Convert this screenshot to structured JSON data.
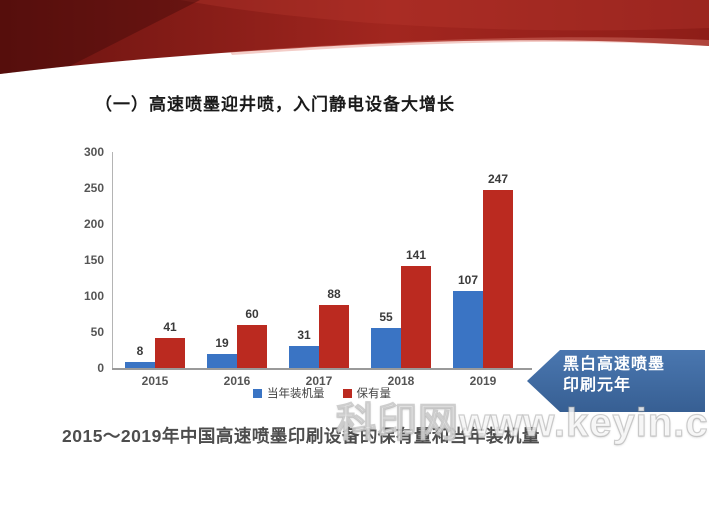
{
  "slide": {
    "title": "（一）高速喷墨迎井喷，入门静电设备大增长",
    "caption": "2015～2019年中国高速喷墨印刷设备的保有量和当年装机量",
    "callout": {
      "line1": "黑白高速喷墨",
      "line2": "印刷元年"
    },
    "watermark": "科印网www.keyin.cn"
  },
  "colors": {
    "series_blue": "#3a74c4",
    "series_red": "#bb2a20",
    "callout_blue": "#3e6ca6",
    "ribbon_dark_red": "#6a1310",
    "ribbon_red": "#9c221c"
  },
  "chart_data": {
    "type": "bar",
    "title": "",
    "xlabel": "",
    "ylabel": "",
    "categories": [
      "2015",
      "2016",
      "2017",
      "2018",
      "2019"
    ],
    "series": [
      {
        "name": "当年装机量",
        "color": "#3a74c4",
        "values": [
          8,
          19,
          31,
          55,
          107
        ]
      },
      {
        "name": "保有量",
        "color": "#bb2a20",
        "values": [
          41,
          60,
          88,
          141,
          247
        ]
      }
    ],
    "ylim": [
      0,
      300
    ],
    "yticks": [
      0,
      50,
      100,
      150,
      200,
      250,
      300
    ],
    "grid": false,
    "data_labels": true,
    "legend_position": "bottom"
  }
}
